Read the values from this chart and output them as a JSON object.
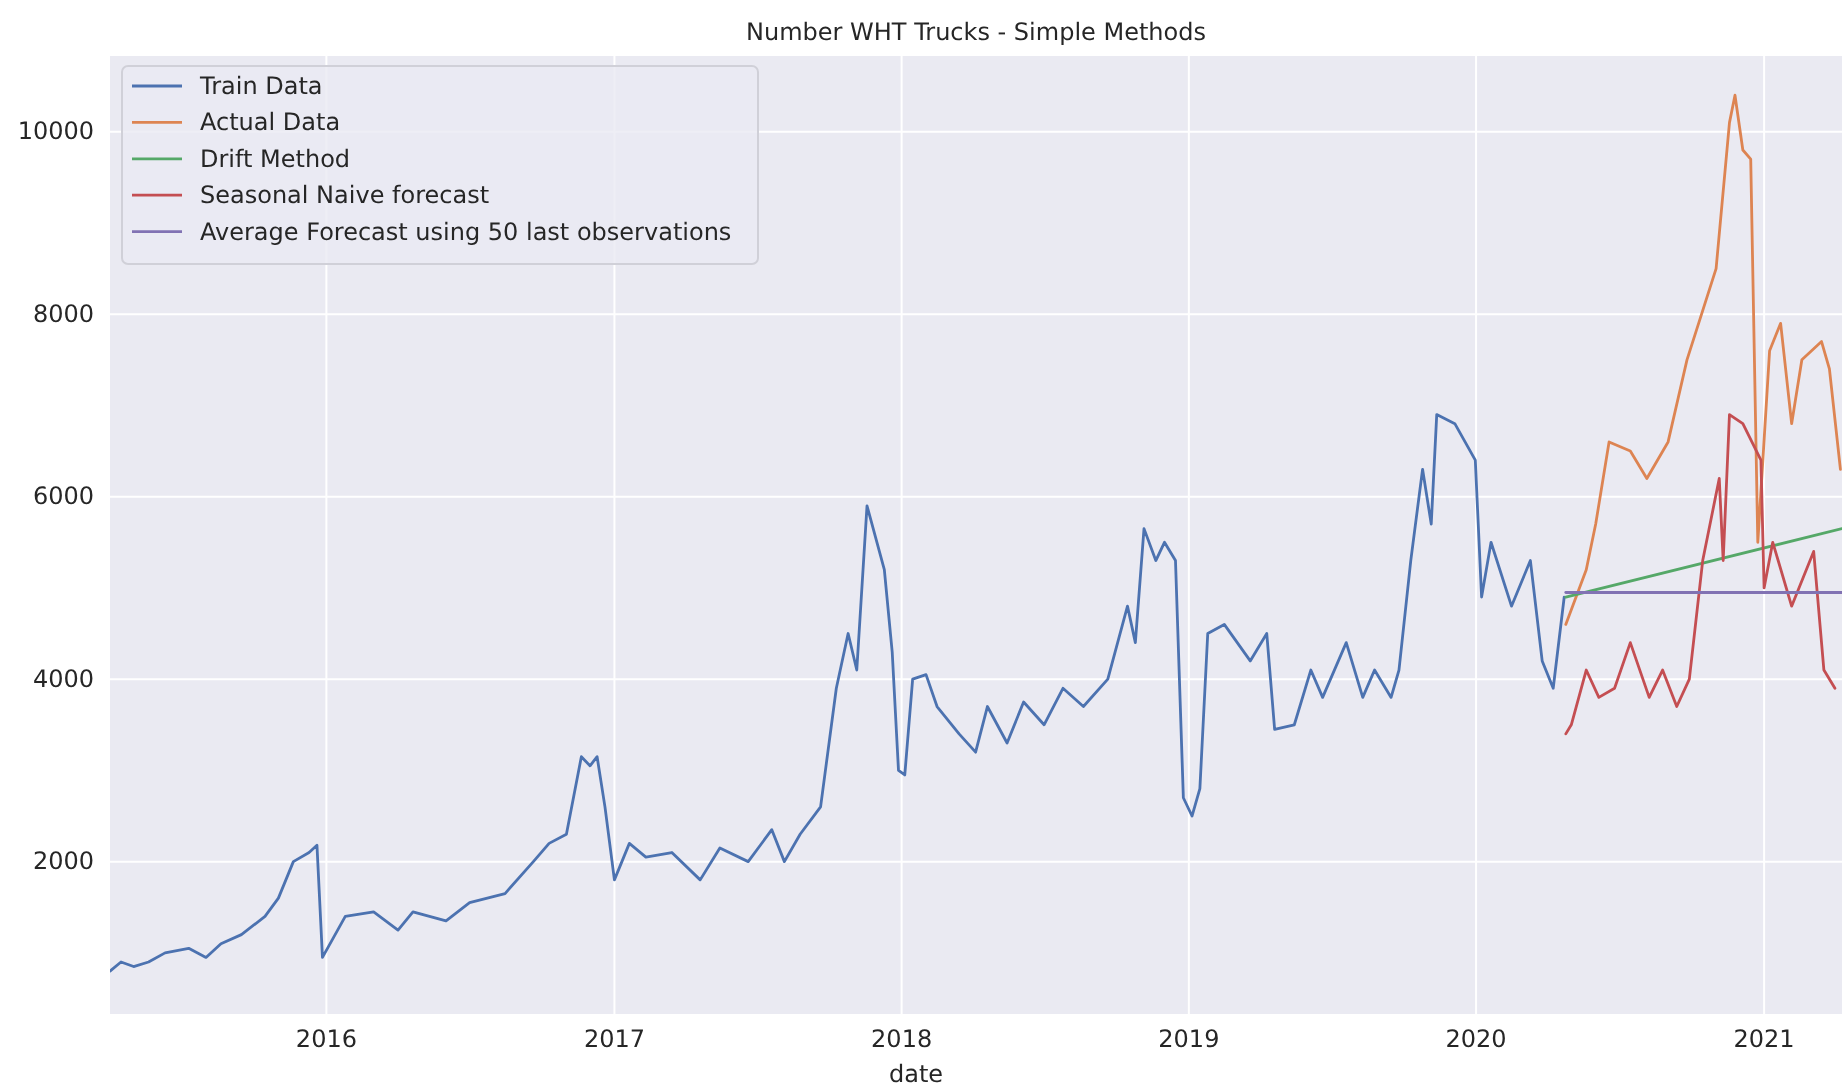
{
  "chart_data": {
    "type": "line",
    "title": "Number WHT Trucks - Simple Methods",
    "xlabel": "date",
    "xlim": [
      "2015-04-01",
      "2021-04-10"
    ],
    "xticks": [
      {
        "value": "2016-01-01",
        "label": "2016"
      },
      {
        "value": "2017-01-01",
        "label": "2017"
      },
      {
        "value": "2018-01-01",
        "label": "2018"
      },
      {
        "value": "2019-01-01",
        "label": "2019"
      },
      {
        "value": "2020-01-01",
        "label": "2020"
      },
      {
        "value": "2021-01-01",
        "label": "2021"
      }
    ],
    "ylim": [
      330,
      10830
    ],
    "yticks": [
      2000,
      4000,
      6000,
      8000,
      10000
    ],
    "grid": true,
    "legend": "top left",
    "series": [
      {
        "name": "Train Data",
        "color": "#4c72b0",
        "x": [
          "2015-04-01",
          "2015-04-15",
          "2015-05-01",
          "2015-05-20",
          "2015-06-10",
          "2015-07-10",
          "2015-08-01",
          "2015-08-20",
          "2015-09-15",
          "2015-10-15",
          "2015-11-01",
          "2015-11-20",
          "2015-12-10",
          "2015-12-20",
          "2015-12-27",
          "2016-01-25",
          "2016-03-01",
          "2016-04-01",
          "2016-04-20",
          "2016-06-01",
          "2016-07-01",
          "2016-08-15",
          "2016-09-20",
          "2016-10-10",
          "2016-11-01",
          "2016-11-20",
          "2016-12-01",
          "2016-12-10",
          "2016-12-20",
          "2017-01-01",
          "2017-01-20",
          "2017-02-10",
          "2017-03-15",
          "2017-04-20",
          "2017-05-15",
          "2017-06-20",
          "2017-07-20",
          "2017-08-05",
          "2017-08-25",
          "2017-09-20",
          "2017-10-10",
          "2017-10-25",
          "2017-11-05",
          "2017-11-18",
          "2017-12-10",
          "2017-12-20",
          "2017-12-28",
          "2018-01-05",
          "2018-01-15",
          "2018-02-01",
          "2018-02-15",
          "2018-03-15",
          "2018-04-05",
          "2018-04-20",
          "2018-05-15",
          "2018-06-05",
          "2018-07-01",
          "2018-07-25",
          "2018-08-20",
          "2018-09-20",
          "2018-10-15",
          "2018-10-25",
          "2018-11-05",
          "2018-11-20",
          "2018-12-01",
          "2018-12-15",
          "2018-12-25",
          "2019-01-05",
          "2019-01-15",
          "2019-01-25",
          "2019-02-15",
          "2019-03-20",
          "2019-04-10",
          "2019-04-20",
          "2019-05-15",
          "2019-06-05",
          "2019-06-20",
          "2019-07-20",
          "2019-08-10",
          "2019-08-25",
          "2019-09-15",
          "2019-09-25",
          "2019-10-10",
          "2019-10-25",
          "2019-11-05",
          "2019-11-12",
          "2019-12-05",
          "2019-12-31",
          "2020-01-08",
          "2020-01-20",
          "2020-02-15",
          "2020-03-10",
          "2020-03-25",
          "2020-04-08",
          "2020-04-22"
        ],
        "values": [
          800,
          900,
          850,
          900,
          1000,
          1050,
          950,
          1100,
          1200,
          1400,
          1600,
          2000,
          2100,
          2180,
          950,
          1400,
          1450,
          1250,
          1450,
          1350,
          1550,
          1650,
          2000,
          2200,
          2300,
          3150,
          3050,
          3150,
          2600,
          1800,
          2200,
          2050,
          2100,
          1800,
          2150,
          2000,
          2350,
          2000,
          2300,
          2600,
          3900,
          4500,
          4100,
          5900,
          5200,
          4300,
          3000,
          2950,
          4000,
          4050,
          3700,
          3400,
          3200,
          3700,
          3300,
          3750,
          3500,
          3900,
          3700,
          4000,
          4800,
          4400,
          5650,
          5300,
          5500,
          5300,
          2700,
          2500,
          2800,
          4500,
          4600,
          4200,
          4500,
          3450,
          3500,
          4100,
          3800,
          4400,
          3800,
          4100,
          3800,
          4100,
          5300,
          6300,
          5700,
          6900,
          6800,
          6400,
          4900,
          5500,
          4800,
          5300,
          4200,
          3900,
          4900
        ]
      },
      {
        "name": "Actual Data",
        "color": "#dd8452",
        "x": [
          "2020-04-24",
          "2020-05-20",
          "2020-06-01",
          "2020-06-18",
          "2020-07-15",
          "2020-08-05",
          "2020-09-01",
          "2020-09-25",
          "2020-11-01",
          "2020-11-18",
          "2020-11-25",
          "2020-12-05",
          "2020-12-15",
          "2020-12-24",
          "2021-01-08",
          "2021-01-22",
          "2021-02-05",
          "2021-02-18",
          "2021-03-15",
          "2021-03-25",
          "2021-04-08"
        ],
        "values": [
          4600,
          5200,
          5700,
          6600,
          6500,
          6200,
          6600,
          7500,
          8500,
          10100,
          10400,
          9800,
          9700,
          5500,
          7600,
          7900,
          6800,
          7500,
          7700,
          7400,
          6300
        ]
      },
      {
        "name": "Drift Method",
        "color": "#55a868",
        "x": [
          "2020-04-24",
          "2021-04-10"
        ],
        "values": [
          4900,
          5650
        ]
      },
      {
        "name": "Seasonal Naive forecast",
        "color": "#c44e52",
        "x": [
          "2020-04-24",
          "2020-05-01",
          "2020-05-20",
          "2020-06-05",
          "2020-06-25",
          "2020-07-15",
          "2020-08-08",
          "2020-08-25",
          "2020-09-12",
          "2020-09-28",
          "2020-10-15",
          "2020-11-05",
          "2020-11-10",
          "2020-11-18",
          "2020-12-05",
          "2020-12-28",
          "2021-01-01",
          "2021-01-12",
          "2021-02-05",
          "2021-03-05",
          "2021-03-18",
          "2021-04-01"
        ],
        "values": [
          3400,
          3500,
          4100,
          3800,
          3900,
          4400,
          3800,
          4100,
          3700,
          4000,
          5300,
          6200,
          5300,
          6900,
          6800,
          6400,
          5000,
          5500,
          4800,
          5400,
          4100,
          3900
        ]
      },
      {
        "name": "Average Forecast using 50 last observations",
        "color": "#8172b3",
        "x": [
          "2020-04-24",
          "2021-04-10"
        ],
        "values": [
          4950,
          4950
        ]
      }
    ]
  }
}
